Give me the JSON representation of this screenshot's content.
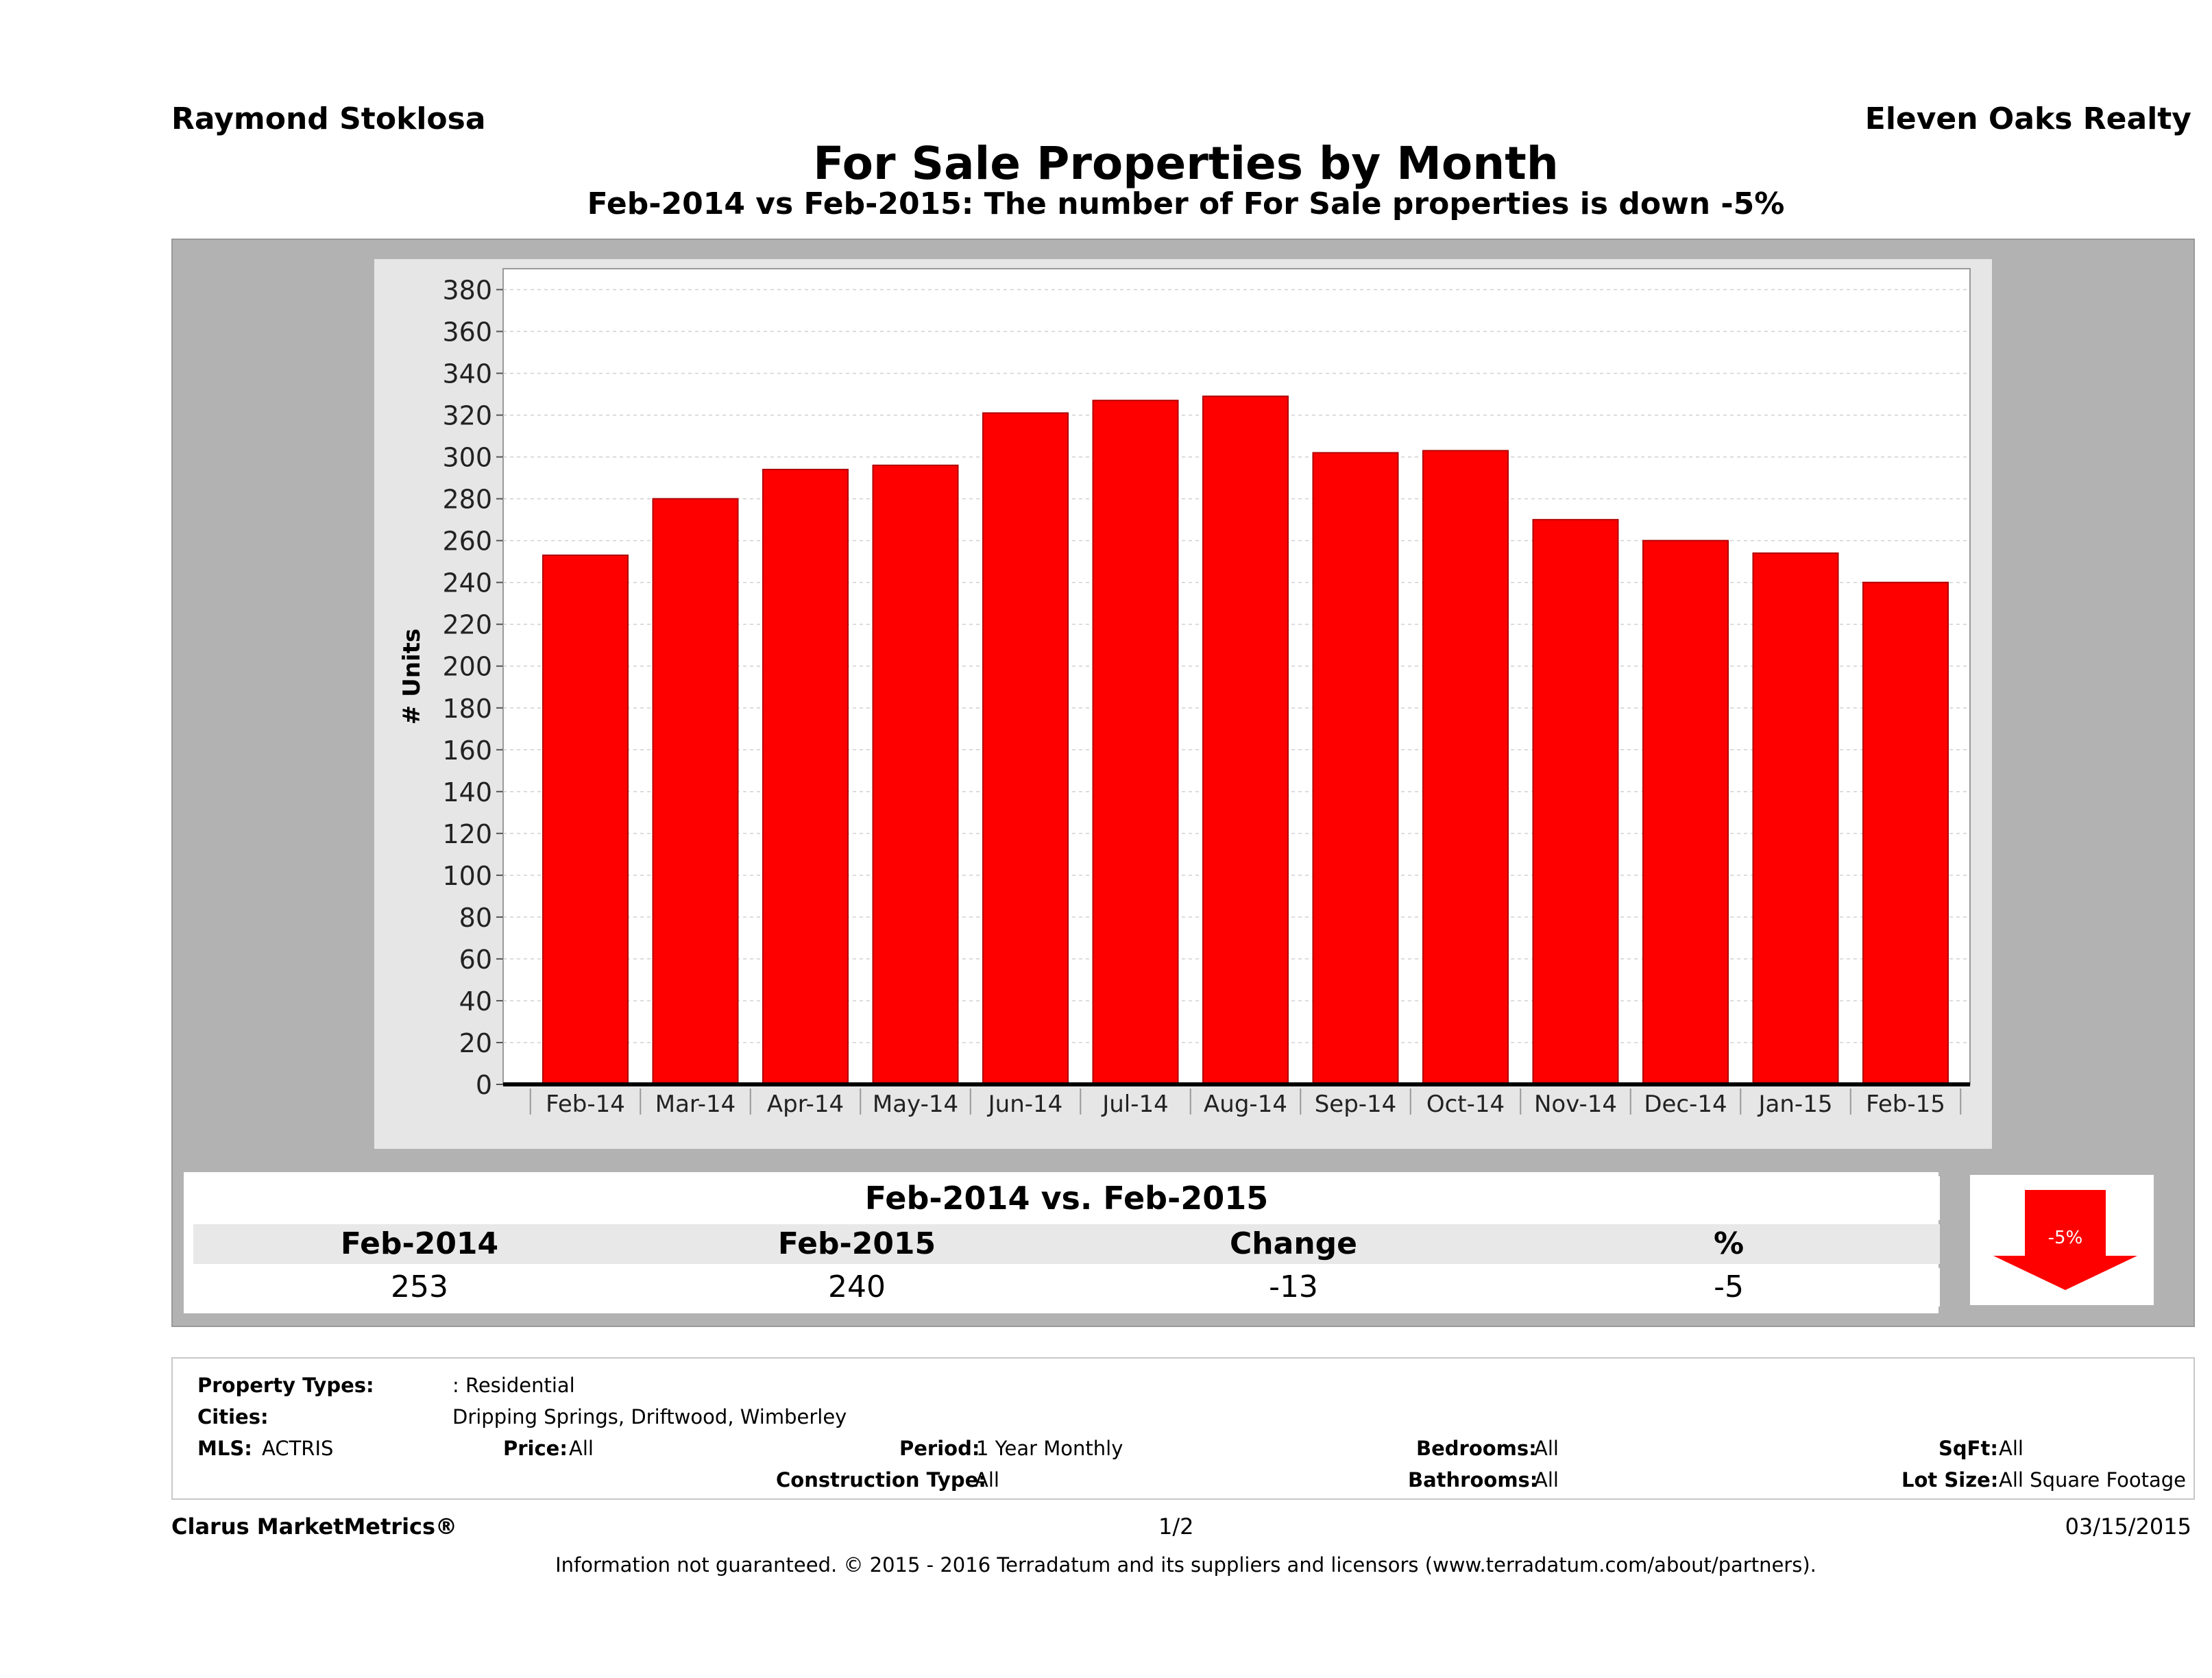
{
  "header": {
    "agent": "Raymond Stoklosa",
    "company": "Eleven Oaks Realty",
    "title": "For Sale Properties by Month",
    "subtitle": "Feb-2014 vs Feb-2015: The number of For Sale  properties is down -5%"
  },
  "chart_data": {
    "type": "bar",
    "categories": [
      "Feb-14",
      "Mar-14",
      "Apr-14",
      "May-14",
      "Jun-14",
      "Jul-14",
      "Aug-14",
      "Sep-14",
      "Oct-14",
      "Nov-14",
      "Dec-14",
      "Jan-15",
      "Feb-15"
    ],
    "values": [
      253,
      280,
      294,
      296,
      321,
      327,
      329,
      302,
      303,
      270,
      260,
      254,
      240
    ],
    "ylabel": "# Units",
    "xlabel": "",
    "ylim": [
      0,
      390
    ],
    "yticks": [
      0,
      20,
      40,
      60,
      80,
      100,
      120,
      140,
      160,
      180,
      200,
      220,
      240,
      260,
      280,
      300,
      320,
      340,
      360,
      380
    ],
    "grid": true,
    "bar_color": "#ff0000"
  },
  "comparison": {
    "heading": "Feb-2014 vs. Feb-2015",
    "labels": [
      "Feb-2014",
      "Feb-2015",
      "Change",
      "%"
    ],
    "values": [
      "253",
      "240",
      "-13",
      "-5"
    ],
    "badge": "-5%",
    "badge_color": "#ff0000"
  },
  "criteria": {
    "property_types_label": "Property Types:",
    "property_types_value": ": Residential",
    "cities_label": "Cities:",
    "cities_value": "Dripping Springs, Driftwood, Wimberley",
    "mls_label": "MLS:",
    "mls_value": "ACTRIS",
    "price_label": "Price:",
    "price_value": "All",
    "period_label": "Period:",
    "period_value": "1 Year Monthly",
    "construction_label": "Construction Type:",
    "construction_value": "All",
    "bedrooms_label": "Bedrooms:",
    "bedrooms_value": "All",
    "bathrooms_label": "Bathrooms:",
    "bathrooms_value": "All",
    "sqft_label": "SqFt:",
    "sqft_value": "All",
    "lotsize_label": "Lot Size:",
    "lotsize_value": "All Square Footage"
  },
  "footer": {
    "brand": "Clarus MarketMetrics®",
    "page": "1/2",
    "date": "03/15/2015",
    "disclaimer": "Information not guaranteed. © 2015 - 2016 Terradatum and its suppliers and licensors (www.terradatum.com/about/partners)."
  }
}
